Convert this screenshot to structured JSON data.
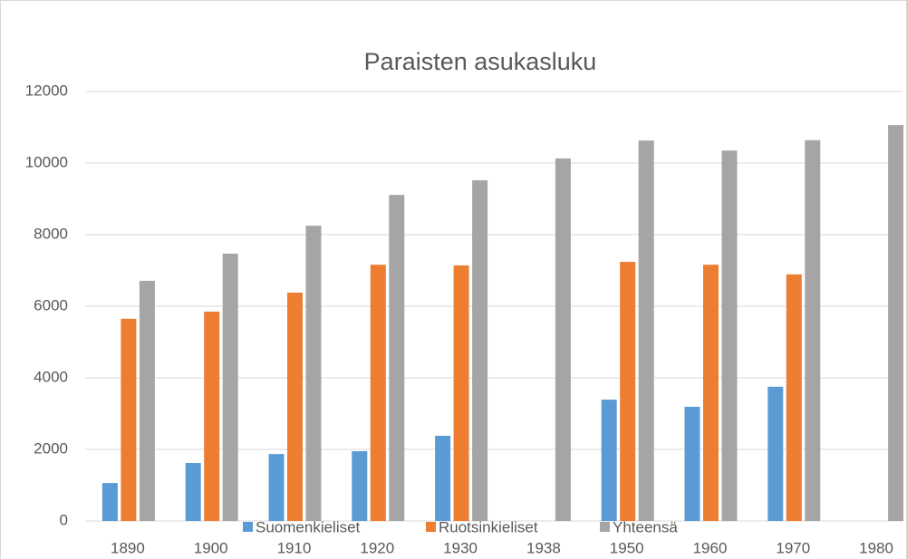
{
  "chart_data": {
    "type": "bar",
    "title": "Paraisten asukasluku",
    "categories": [
      "1890",
      "1900",
      "1910",
      "1920",
      "1930",
      "1938",
      "1950",
      "1960",
      "1970",
      "1980"
    ],
    "series": [
      {
        "name": "Suomenkieliset",
        "color": "#5b9bd5",
        "values": [
          1060,
          1620,
          1870,
          1950,
          2380,
          null,
          3390,
          3190,
          3750,
          null
        ]
      },
      {
        "name": "Ruotsinkieliset",
        "color": "#ed7d31",
        "values": [
          5650,
          5850,
          6380,
          7160,
          7140,
          null,
          7240,
          7160,
          6890,
          null
        ]
      },
      {
        "name": "Yhteensä",
        "color": "#a5a5a5",
        "values": [
          6710,
          7470,
          8250,
          9110,
          9520,
          10130,
          10630,
          10350,
          10640,
          11060
        ]
      }
    ],
    "ylim": [
      0,
      12000
    ],
    "yticks": [
      0,
      2000,
      4000,
      6000,
      8000,
      10000,
      12000
    ],
    "grid": true,
    "legend": "bottom"
  }
}
